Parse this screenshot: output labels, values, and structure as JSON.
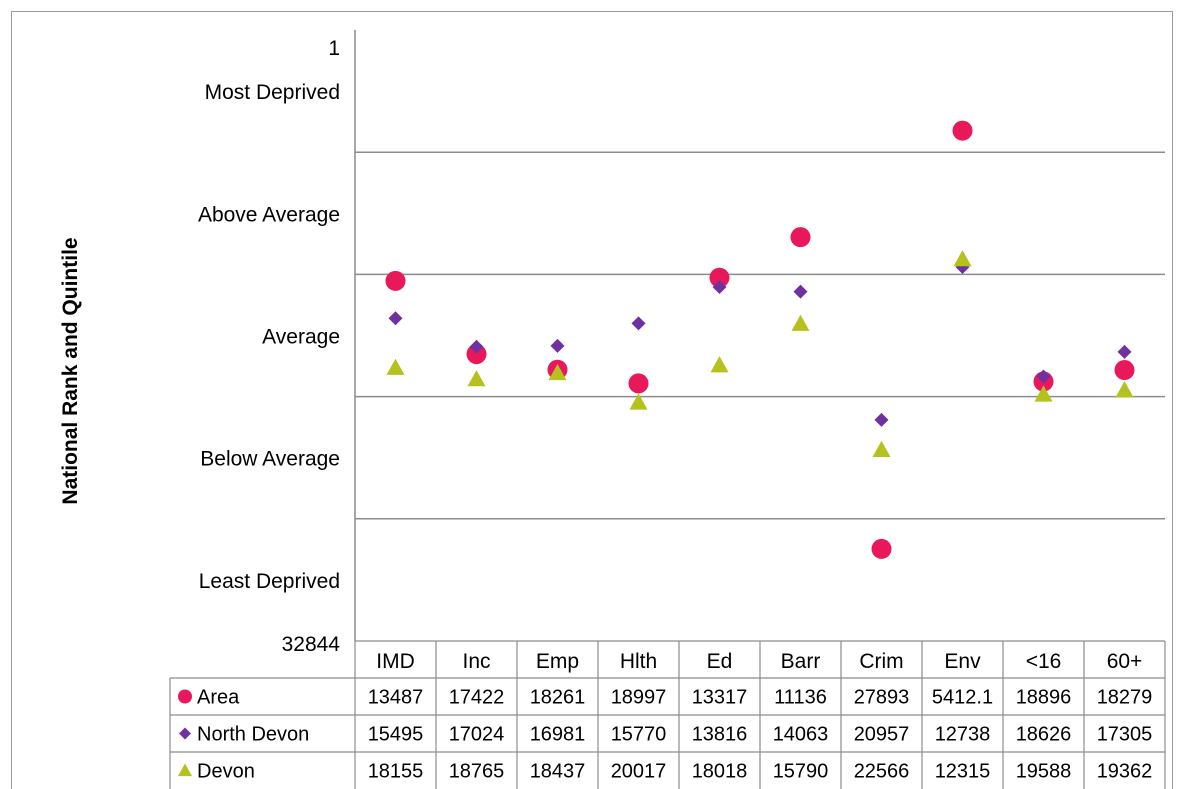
{
  "chart_data": {
    "type": "scatter",
    "title": "",
    "ylabel": "National Rank and Quintile",
    "y_top_label": "1",
    "y_bottom_label": "32844",
    "ylim": [
      1,
      32844
    ],
    "y_inverted": true,
    "quintile_labels": [
      "Most Deprived",
      "Above Average",
      "Average",
      "Below Average",
      "Least Deprived"
    ],
    "categories": [
      "IMD",
      "Inc",
      "Emp",
      "Hlth",
      "Ed",
      "Barr",
      "Crim",
      "Env",
      "<16",
      "60+"
    ],
    "series": [
      {
        "name": "Area",
        "marker": "circle",
        "color": "#e8185a",
        "values": [
          13487,
          17422,
          18261,
          18997,
          13317,
          11136,
          27893,
          5412.1,
          18896,
          18279
        ],
        "labels": [
          "13487",
          "17422",
          "18261",
          "18997",
          "13317",
          "11136",
          "27893",
          "5412.1",
          "18896",
          "18279"
        ]
      },
      {
        "name": "North Devon",
        "marker": "diamond",
        "color": "#7030a0",
        "values": [
          15495,
          17024,
          16981,
          15770,
          13816,
          14063,
          20957,
          12738,
          18626,
          17305
        ],
        "labels": [
          "15495",
          "17024",
          "16981",
          "15770",
          "13816",
          "14063",
          "20957",
          "12738",
          "18626",
          "17305"
        ]
      },
      {
        "name": "Devon",
        "marker": "triangle",
        "color": "#b5c11d",
        "values": [
          18155,
          18765,
          18437,
          20017,
          18018,
          15790,
          22566,
          12315,
          19588,
          19362
        ],
        "labels": [
          "18155",
          "18765",
          "18437",
          "20017",
          "18018",
          "15790",
          "22566",
          "12315",
          "19588",
          "19362"
        ]
      }
    ],
    "gridlines": "horizontal quintile boundaries",
    "legend": "data table"
  }
}
